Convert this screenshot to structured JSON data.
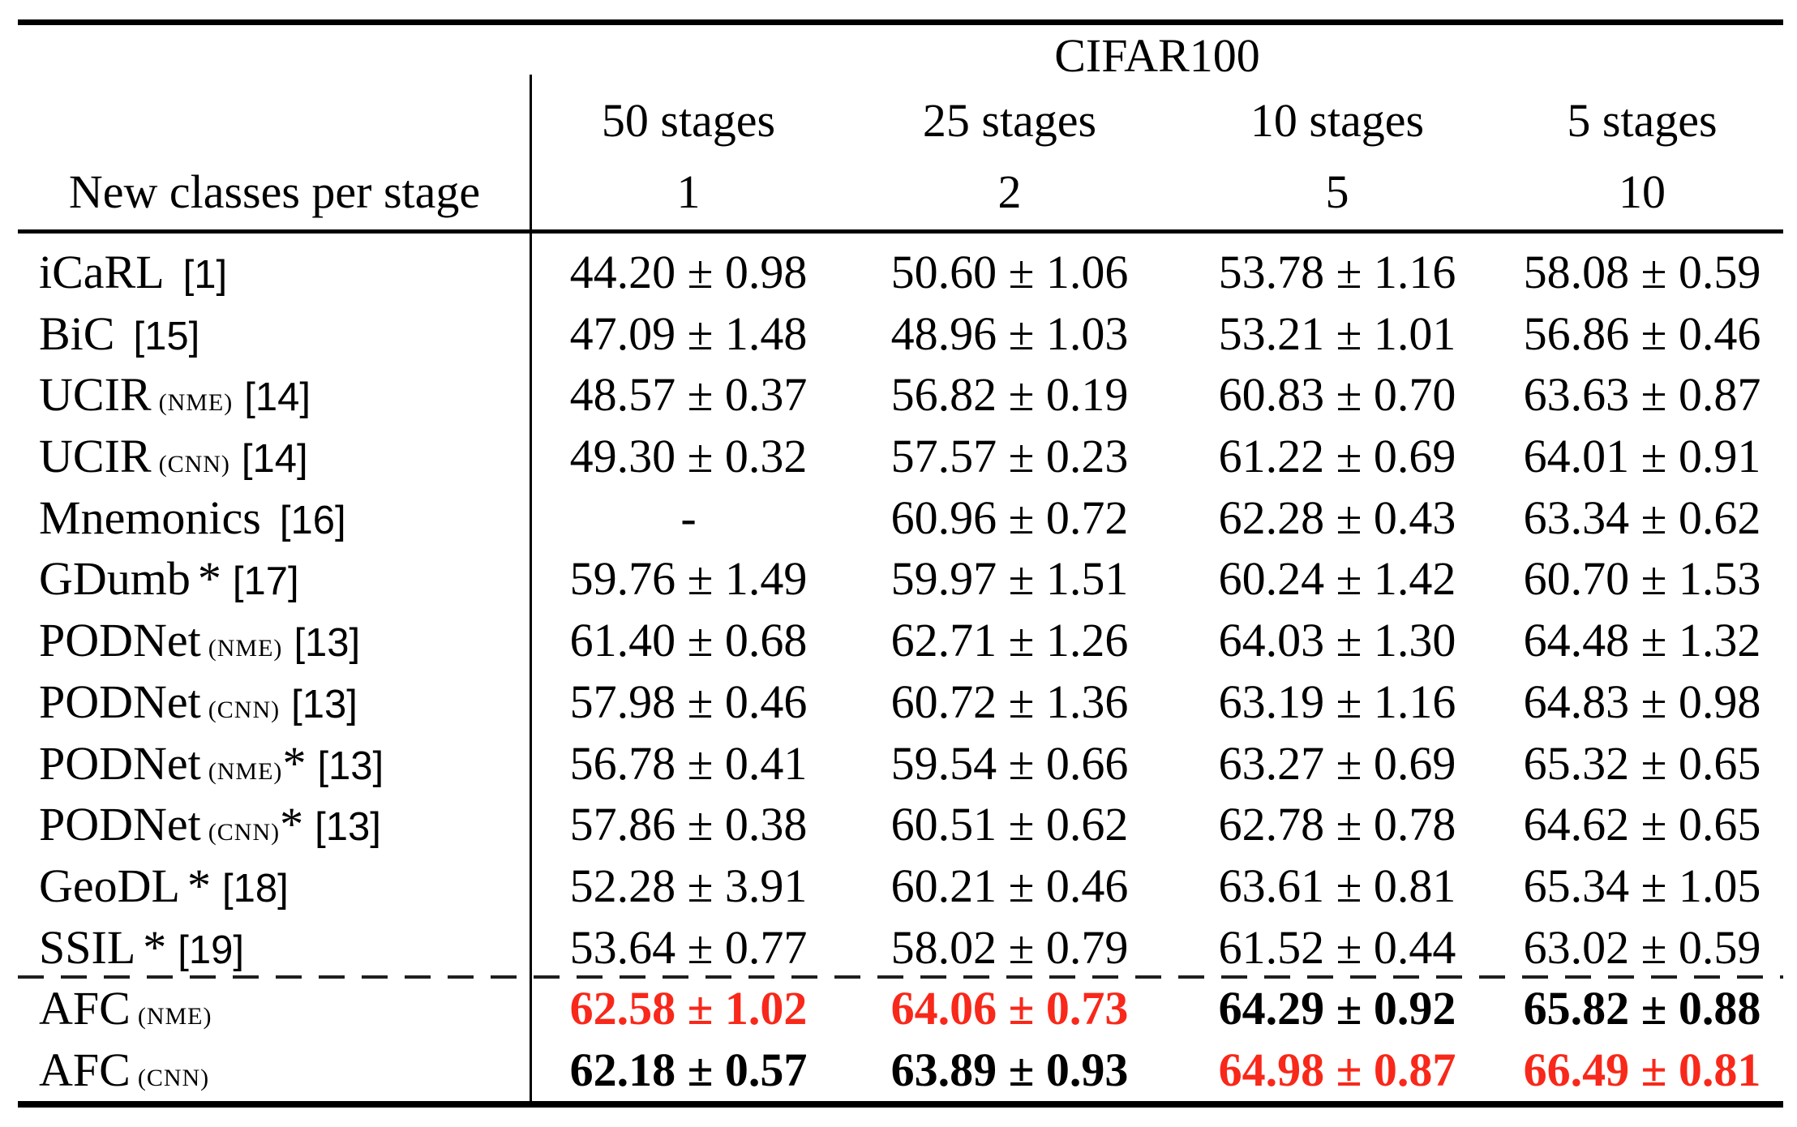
{
  "colors": {
    "accent_red": "#f8281a",
    "text": "#000000"
  },
  "table": {
    "dataset_header": "CIFAR100",
    "row_header": "New classes per stage",
    "stage_headers": [
      "50 stages",
      "25 stages",
      "10 stages",
      "5 stages"
    ],
    "classes_per_stage": [
      "1",
      "2",
      "5",
      "10"
    ],
    "rows": [
      {
        "method": "iCaRL",
        "variant": "",
        "star": "",
        "ref": "[1]",
        "values": [
          "44.20 ± 0.98",
          "50.60 ± 1.06",
          "53.78 ± 1.16",
          "58.08 ± 0.59"
        ],
        "emphasis": [
          "n",
          "n",
          "n",
          "n"
        ]
      },
      {
        "method": "BiC",
        "variant": "",
        "star": "",
        "ref": "[15]",
        "values": [
          "47.09 ± 1.48",
          "48.96 ± 1.03",
          "53.21 ± 1.01",
          "56.86 ± 0.46"
        ],
        "emphasis": [
          "n",
          "n",
          "n",
          "n"
        ]
      },
      {
        "method": "UCIR",
        "variant": "(NME)",
        "star": "",
        "ref": "[14]",
        "values": [
          "48.57 ± 0.37",
          "56.82 ± 0.19",
          "60.83 ± 0.70",
          "63.63 ± 0.87"
        ],
        "emphasis": [
          "n",
          "n",
          "n",
          "n"
        ]
      },
      {
        "method": "UCIR",
        "variant": "(CNN)",
        "star": "",
        "ref": "[14]",
        "values": [
          "49.30 ± 0.32",
          "57.57 ± 0.23",
          "61.22 ± 0.69",
          "64.01 ± 0.91"
        ],
        "emphasis": [
          "n",
          "n",
          "n",
          "n"
        ]
      },
      {
        "method": "Mnemonics",
        "variant": "",
        "star": "",
        "ref": "[16]",
        "values": [
          "-",
          "60.96 ± 0.72",
          "62.28 ± 0.43",
          "63.34 ± 0.62"
        ],
        "emphasis": [
          "n",
          "n",
          "n",
          "n"
        ]
      },
      {
        "method": "GDumb",
        "variant": "",
        "star": "*",
        "ref": "[17]",
        "values": [
          "59.76 ± 1.49",
          "59.97 ± 1.51",
          "60.24 ± 1.42",
          "60.70 ± 1.53"
        ],
        "emphasis": [
          "n",
          "n",
          "n",
          "n"
        ]
      },
      {
        "method": "PODNet",
        "variant": "(NME)",
        "star": "",
        "ref": "[13]",
        "values": [
          "61.40 ± 0.68",
          "62.71 ± 1.26",
          "64.03 ± 1.30",
          "64.48 ± 1.32"
        ],
        "emphasis": [
          "n",
          "n",
          "n",
          "n"
        ]
      },
      {
        "method": "PODNet",
        "variant": "(CNN)",
        "star": "",
        "ref": "[13]",
        "values": [
          "57.98 ± 0.46",
          "60.72 ± 1.36",
          "63.19 ± 1.16",
          "64.83 ± 0.98"
        ],
        "emphasis": [
          "n",
          "n",
          "n",
          "n"
        ]
      },
      {
        "method": "PODNet",
        "variant": "(NME)",
        "star": "*",
        "ref": "[13]",
        "values": [
          "56.78 ± 0.41",
          "59.54 ± 0.66",
          "63.27 ± 0.69",
          "65.32 ± 0.65"
        ],
        "emphasis": [
          "n",
          "n",
          "n",
          "n"
        ]
      },
      {
        "method": "PODNet",
        "variant": "(CNN)",
        "star": "*",
        "ref": "[13]",
        "values": [
          "57.86 ± 0.38",
          "60.51 ± 0.62",
          "62.78 ± 0.78",
          "64.62 ± 0.65"
        ],
        "emphasis": [
          "n",
          "n",
          "n",
          "n"
        ]
      },
      {
        "method": "GeoDL",
        "variant": "",
        "star": "*",
        "ref": "[18]",
        "values": [
          "52.28 ± 3.91",
          "60.21 ± 0.46",
          "63.61 ± 0.81",
          "65.34 ± 1.05"
        ],
        "emphasis": [
          "n",
          "n",
          "n",
          "n"
        ]
      },
      {
        "method": "SSIL",
        "variant": "",
        "star": "*",
        "ref": "[19]",
        "values": [
          "53.64 ± 0.77",
          "58.02 ± 0.79",
          "61.52 ± 0.44",
          "63.02 ± 0.59"
        ],
        "emphasis": [
          "n",
          "n",
          "n",
          "n"
        ]
      },
      {
        "method": "AFC",
        "variant": "(NME)",
        "star": "",
        "ref": "",
        "values": [
          "62.58 ± 1.02",
          "64.06 ± 0.73",
          "64.29 ± 0.92",
          "65.82 ± 0.88"
        ],
        "emphasis": [
          "r",
          "r",
          "b",
          "b"
        ]
      },
      {
        "method": "AFC",
        "variant": "(CNN)",
        "star": "",
        "ref": "",
        "values": [
          "62.18 ± 0.57",
          "63.89 ± 0.93",
          "64.98 ± 0.87",
          "66.49 ± 0.81"
        ],
        "emphasis": [
          "b",
          "b",
          "r",
          "r"
        ]
      }
    ]
  }
}
